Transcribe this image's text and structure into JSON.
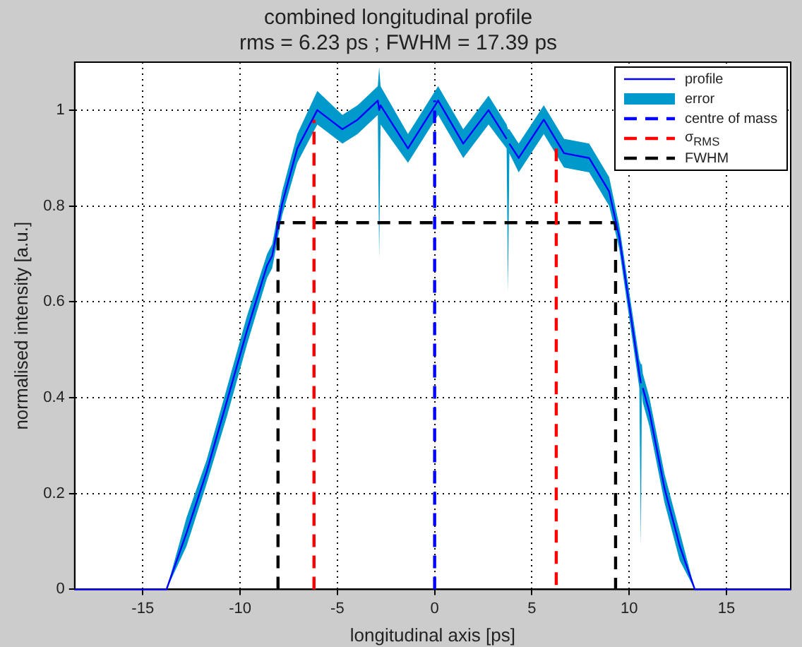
{
  "chart_data": {
    "type": "line",
    "title": "combined longitudinal profile",
    "subtitle": "rms = 6.23 ps ; FWHM = 17.39 ps",
    "xlabel": "longitudinal axis [ps]",
    "ylabel": "normalised intensity [a.u.]",
    "xlim": [
      -18.5,
      18.3
    ],
    "ylim": [
      0,
      1.1
    ],
    "xticks": [
      -15,
      -10,
      -5,
      0,
      5,
      10,
      15
    ],
    "yticks": [
      0,
      0.2,
      0.4,
      0.6,
      0.8,
      1
    ],
    "grid": true,
    "legend": "top right",
    "marker": "none",
    "series": [
      {
        "name": "profile",
        "type": "line",
        "color": "#0000ff",
        "line_style": "solid",
        "x": [
          -18.5,
          -13.78,
          -12.75,
          -11.72,
          -10.68,
          -9.65,
          -8.61,
          -8.35,
          -7.84,
          -7.06,
          -6.03,
          -4.74,
          -3.96,
          -2.92,
          -2.85,
          -2.78,
          -1.37,
          0.18,
          1.47,
          2.77,
          3.7,
          3.77,
          3.84,
          4.32,
          5.61,
          6.65,
          7.94,
          8.97,
          9.49,
          10.52,
          10.6,
          10.65,
          10.7,
          11.04,
          11.82,
          12.6,
          13.37,
          18.3
        ],
        "values": [
          0,
          0,
          0.118,
          0.245,
          0.392,
          0.539,
          0.676,
          0.696,
          0.804,
          0.92,
          1.0,
          0.96,
          0.98,
          1.02,
          1.0,
          1.01,
          0.92,
          1.02,
          0.93,
          1.0,
          0.94,
          null,
          0.93,
          0.9,
          0.98,
          0.91,
          0.9,
          0.83,
          0.735,
          0.45,
          0.43,
          null,
          0.42,
          0.37,
          0.21,
          0.09,
          0,
          0
        ]
      },
      {
        "name": "error",
        "type": "line",
        "line_style": "solid",
        "color": "#0099cc",
        "x": [
          -18.5,
          -13.78,
          -12.75,
          -11.72,
          -10.68,
          -9.65,
          -8.61,
          -8.35,
          -7.84,
          -7.06,
          -6.03,
          -4.74,
          -3.96,
          -2.92,
          -2.85,
          -2.78,
          -1.37,
          0.18,
          1.47,
          2.77,
          3.7,
          3.77,
          3.84,
          4.32,
          5.61,
          6.65,
          7.94,
          8.97,
          9.49,
          10.52,
          10.6,
          10.65,
          10.7,
          11.04,
          11.82,
          12.6,
          13.37,
          18.3
        ],
        "values": [
          null,
          null,
          null,
          null,
          null,
          null,
          null,
          null,
          null,
          null,
          null,
          null,
          null,
          null,
          null,
          null,
          null,
          null,
          null,
          null,
          null,
          null,
          null,
          null,
          null,
          null,
          null,
          null,
          null,
          null,
          null,
          null,
          null,
          null,
          null,
          null,
          null,
          null
        ],
        "lower": [
          0,
          0,
          0.09,
          0.22,
          0.36,
          0.51,
          0.65,
          0.67,
          0.78,
          0.89,
          0.97,
          0.93,
          0.95,
          0.99,
          0.69,
          0.97,
          0.89,
          0.99,
          0.9,
          0.97,
          0.92,
          0.62,
          0.91,
          0.87,
          0.95,
          0.88,
          0.87,
          0.8,
          0.71,
          0.42,
          0.09,
          0.41,
          0.39,
          0.34,
          0.18,
          0.06,
          0,
          0
        ],
        "upper": [
          0,
          0,
          0.15,
          0.27,
          0.42,
          0.57,
          0.7,
          0.72,
          0.83,
          0.95,
          1.04,
          0.99,
          1.01,
          1.05,
          1.09,
          1.05,
          0.95,
          1.05,
          0.96,
          1.03,
          0.97,
          0.96,
          0.96,
          0.93,
          1.01,
          0.94,
          0.93,
          0.86,
          0.76,
          0.48,
          0.47,
          0.47,
          0.45,
          0.4,
          0.24,
          0.12,
          0,
          0
        ]
      },
      {
        "name": "centre of mass",
        "type": "line",
        "color": "#0000ff",
        "line_style": "dashed",
        "x": [
          0,
          0
        ],
        "values": [
          0,
          1.02
        ]
      },
      {
        "name": "σ$_{RMS}$",
        "type": "line",
        "color": "#ff0000",
        "line_style": "dashed",
        "x": [
          -6.2,
          -6.2,
          0,
          6.25,
          6.25
        ],
        "values": [
          0,
          0.98,
          null,
          0.92,
          0
        ]
      },
      {
        "name": "FWHM",
        "type": "line",
        "color": "#000000",
        "line_style": "dashed",
        "x": [
          -8.05,
          -8.05,
          9.3,
          9.3
        ],
        "values": [
          0,
          0.765,
          0.765,
          0
        ]
      }
    ]
  }
}
